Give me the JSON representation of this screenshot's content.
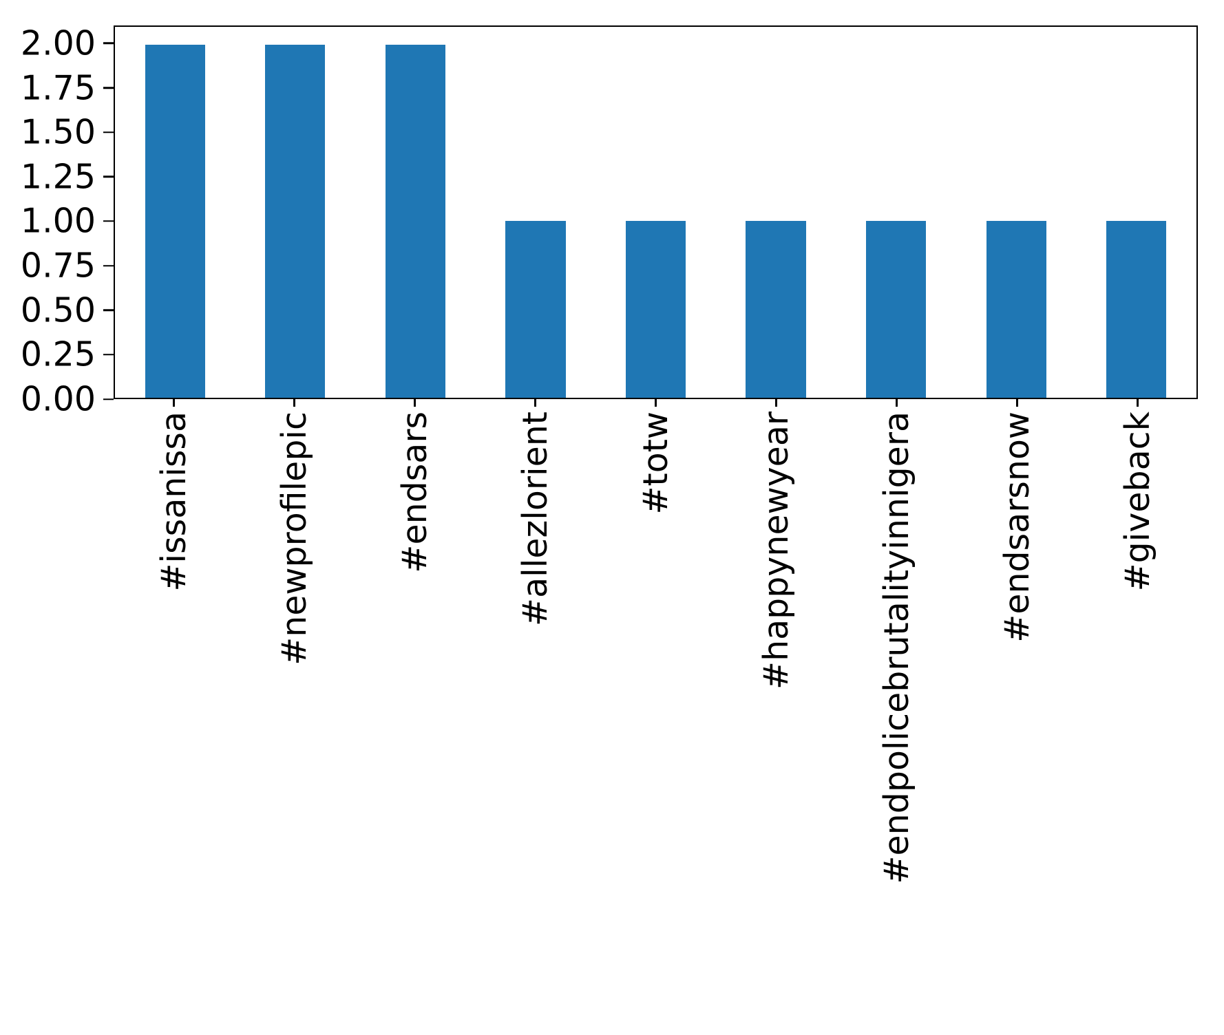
{
  "figure": {
    "background": "#ffffff",
    "text_color": "#000000"
  },
  "chart_data": {
    "type": "bar",
    "title": "",
    "xlabel": "",
    "ylabel": "",
    "categories": [
      "#issanissa",
      "#newprofilepic",
      "#endsars",
      "#allezlorient",
      "#totw",
      "#happynewyear",
      "#endpolicebrutalityinnigera",
      "#endsarsnow",
      "#giveback"
    ],
    "values": [
      2,
      2,
      2,
      1,
      1,
      1,
      1,
      1,
      1
    ],
    "bar_color": "#1f77b4",
    "ylim": [
      0,
      2.1
    ],
    "yticks": [
      0,
      0.25,
      0.5,
      0.75,
      1.0,
      1.25,
      1.5,
      1.75,
      2.0
    ],
    "ytick_labels": [
      "0.00",
      "0.25",
      "0.50",
      "0.75",
      "1.00",
      "1.25",
      "1.50",
      "1.75",
      "2.00"
    ],
    "x_tick_rotation": 90,
    "grid": false,
    "legend": null
  }
}
